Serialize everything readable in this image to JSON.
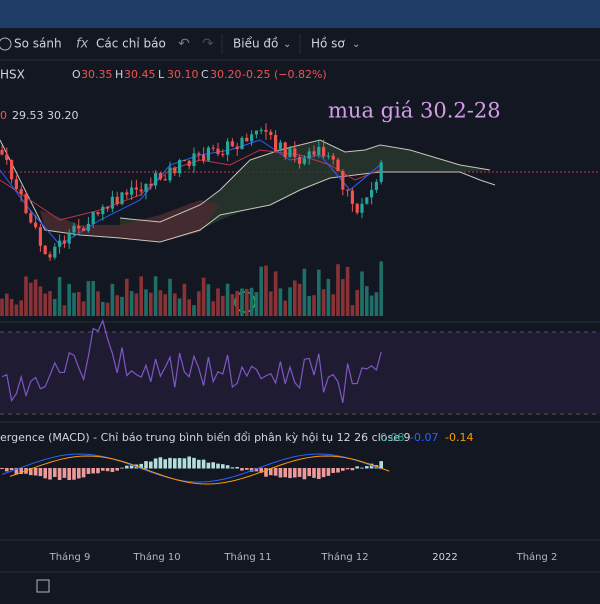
{
  "toolbar": {
    "items": [
      "So sánh",
      "Các chỉ báo",
      "Biểu đồ",
      "Hồ sơ"
    ]
  },
  "legend": {
    "symbol": "HSX",
    "ohlc": [
      {
        "label": "O",
        "value": "30.35"
      },
      {
        "label": "H",
        "value": "30.45"
      },
      {
        "label": "L",
        "value": "30.10"
      },
      {
        "label": "C",
        "value": "30.20"
      }
    ],
    "change": "-0.25 (−0.82%)",
    "indicator_values": [
      "0",
      "29.53",
      "30.20"
    ]
  },
  "annotation": "mua giá 30.2-28",
  "macd": {
    "label": "ergence (MACD) - Chỉ báo trung bình biến đổi phân kỳ hội tụ 12 26 close 9",
    "values": [
      "0.08",
      "-0.07",
      "-0.14"
    ]
  },
  "time_axis": [
    "Tháng 9",
    "Tháng 10",
    "Tháng 11",
    "Tháng 12",
    "2022",
    "Tháng 2"
  ]
}
